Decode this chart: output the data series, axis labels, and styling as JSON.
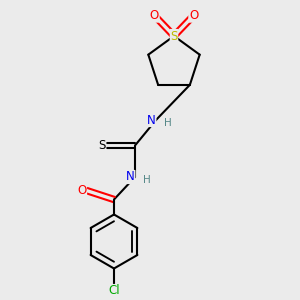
{
  "bg_color": "#ebebeb",
  "atom_colors": {
    "C": "#000000",
    "N": "#0000ee",
    "O": "#ff0000",
    "S_ring": "#bbbb00",
    "S_thio": "#000000",
    "Cl": "#00aa00",
    "H": "#558888"
  },
  "bond_color": "#000000",
  "bond_width": 1.5,
  "font_size_atom": 8.5
}
